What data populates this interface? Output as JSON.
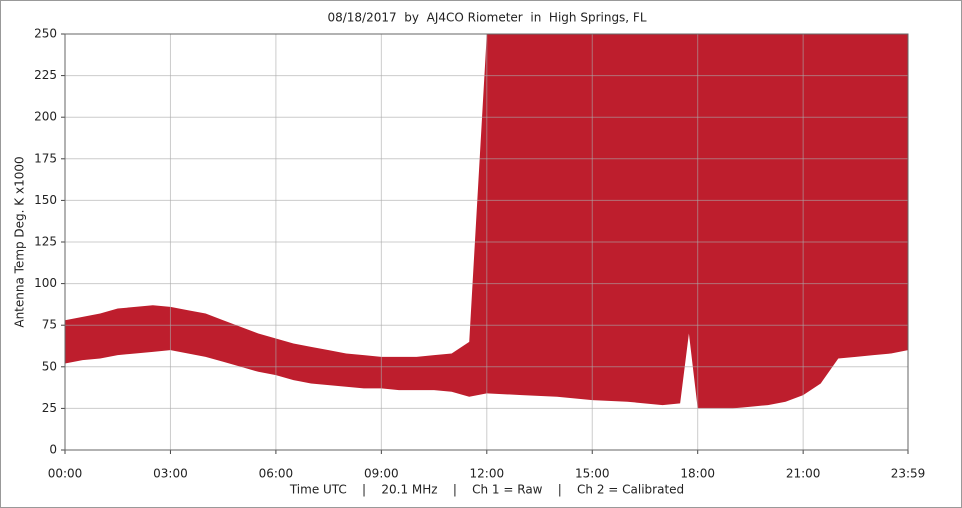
{
  "chart_data": {
    "type": "band",
    "title": "08/18/2017  by  AJ4CO Riometer  in  High Springs, FL",
    "y_label": "Antenna Temp Deg. K x1000",
    "x_label": "Time UTC    |    20.1 MHz    |    Ch 1 = Raw    |    Ch 2 = Calibrated",
    "x": [
      0,
      0.5,
      1,
      1.5,
      2,
      2.5,
      3,
      3.5,
      4,
      4.5,
      5,
      5.5,
      6,
      6.5,
      7,
      7.5,
      8,
      8.5,
      9,
      9.5,
      10,
      10.5,
      11,
      11.5,
      12,
      13,
      14,
      15,
      16,
      17,
      17.5,
      17.75,
      18,
      18.5,
      19,
      19.5,
      20,
      20.5,
      21,
      21.5,
      22,
      22.5,
      23,
      23.5,
      23.983
    ],
    "series": [
      {
        "name": "Upper",
        "color": "#be1e2d",
        "values": [
          78,
          80,
          82,
          85,
          86,
          87,
          86,
          84,
          82,
          78,
          74,
          70,
          67,
          64,
          62,
          60,
          58,
          57,
          56,
          56,
          56,
          57,
          58,
          65,
          250,
          250,
          250,
          250,
          250,
          250,
          250,
          250,
          250,
          250,
          250,
          250,
          250,
          250,
          250,
          250,
          250,
          250,
          250,
          250,
          250
        ]
      },
      {
        "name": "Lower",
        "color": "#ffffff",
        "values": [
          52,
          54,
          55,
          57,
          58,
          59,
          60,
          58,
          56,
          53,
          50,
          47,
          45,
          42,
          40,
          39,
          38,
          37,
          37,
          36,
          36,
          36,
          35,
          32,
          34,
          33,
          32,
          30,
          29,
          27,
          28,
          70,
          25,
          25,
          25,
          26,
          27,
          29,
          33,
          40,
          55,
          56,
          57,
          58,
          60
        ]
      }
    ],
    "xlim": [
      0,
      23.983
    ],
    "xticks": [
      {
        "value": 0,
        "label": "00:00"
      },
      {
        "value": 3,
        "label": "03:00"
      },
      {
        "value": 6,
        "label": "06:00"
      },
      {
        "value": 9,
        "label": "09:00"
      },
      {
        "value": 12,
        "label": "12:00"
      },
      {
        "value": 15,
        "label": "15:00"
      },
      {
        "value": 18,
        "label": "18:00"
      },
      {
        "value": 21,
        "label": "21:00"
      },
      {
        "value": 23.983,
        "label": "23:59"
      }
    ],
    "ylim": [
      0,
      250
    ],
    "yticks": [
      0,
      25,
      50,
      75,
      100,
      125,
      150,
      175,
      200,
      225,
      250
    ],
    "grid": true
  }
}
